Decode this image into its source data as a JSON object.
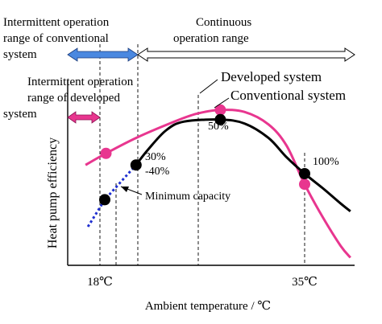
{
  "chart_data": {
    "type": "line",
    "xlabel": "Ambient temperature / ℃",
    "ylabel": "Heat pump efficiency",
    "x_ticks": [
      "18℃",
      "35℃"
    ],
    "colors": {
      "developed": "#e8368f",
      "conventional": "#000000",
      "low_capacity": "#1f2fd0",
      "intermittent_conventional_arrow": "#4a88e0",
      "intermittent_developed_arrow": "#e8368f"
    },
    "series": [
      {
        "name": "Developed system",
        "color": "#e8368f",
        "points": [
          [
            16.8,
            0.52
          ],
          [
            18.5,
            0.58
          ],
          [
            21.0,
            0.66
          ],
          [
            24.0,
            0.74
          ],
          [
            26.0,
            0.785
          ],
          [
            28.0,
            0.805
          ],
          [
            30.0,
            0.795
          ],
          [
            32.0,
            0.73
          ],
          [
            33.5,
            0.62
          ],
          [
            35.0,
            0.42
          ],
          [
            36.5,
            0.25
          ],
          [
            38.0,
            0.1
          ],
          [
            38.8,
            0.04
          ]
        ],
        "markers": [
          [
            18.5,
            0.58
          ],
          [
            28.0,
            0.805
          ],
          [
            35.0,
            0.42
          ]
        ]
      },
      {
        "name": "Conventional system",
        "color": "#000000",
        "points": [
          [
            21.0,
            0.52
          ],
          [
            22.0,
            0.6
          ],
          [
            23.5,
            0.7
          ],
          [
            25.0,
            0.745
          ],
          [
            28.0,
            0.755
          ],
          [
            30.0,
            0.735
          ],
          [
            32.0,
            0.66
          ],
          [
            33.5,
            0.56
          ],
          [
            35.0,
            0.475
          ],
          [
            36.5,
            0.4
          ],
          [
            38.0,
            0.32
          ],
          [
            38.8,
            0.28
          ]
        ],
        "markers": [
          [
            21.0,
            0.52
          ],
          [
            28.0,
            0.755
          ],
          [
            35.0,
            0.475
          ]
        ]
      },
      {
        "name": "Low capacity (dotted)",
        "color": "#1f2fd0",
        "style": "dotted",
        "points": [
          [
            17.0,
            0.2
          ],
          [
            18.4,
            0.34
          ],
          [
            21.0,
            0.52
          ]
        ],
        "markers": [
          [
            18.4,
            0.34
          ]
        ]
      }
    ],
    "annotations": {
      "intermittent_conventional": "Intermittent operation\nrange of conventional\nsystem",
      "continuous": "Continuous\noperation range",
      "intermittent_developed": "Intermittent operation\nrange of developed\nsystem",
      "developed_label": "Developed system",
      "conventional_label": "Conventional system",
      "pct_50": "50%",
      "pct_30": "30%",
      "pct_40": "-40%",
      "pct_100": "100%",
      "min_capacity": "Minimum capacity"
    }
  }
}
